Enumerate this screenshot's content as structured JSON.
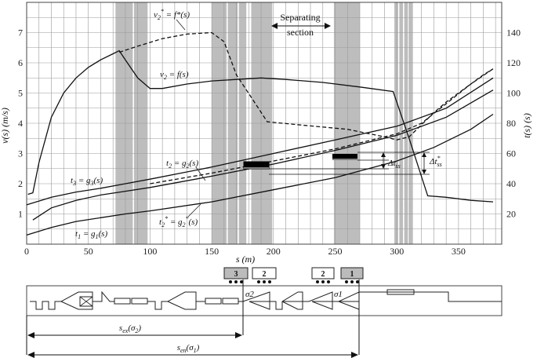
{
  "chart_data": {
    "type": "line",
    "title": "",
    "xlabel": "s (m)",
    "ylabel_left": "v(s) (m/s)",
    "ylabel_right": "t(s) (s)",
    "xlim": [
      0,
      385
    ],
    "ylim_left": [
      0,
      8
    ],
    "ylim_right": [
      0,
      160
    ],
    "x_ticks": [
      "0",
      "50",
      "100",
      "150",
      "200",
      "250",
      "300",
      "350"
    ],
    "y_left_ticks": [
      "1",
      "2",
      "3",
      "4",
      "5",
      "6",
      "7"
    ],
    "y_right_ticks": [
      "20",
      "40",
      "60",
      "80",
      "100",
      "120",
      "140"
    ],
    "grid": true,
    "separating_section_label": "Separating section",
    "separating_section_range": [
      200,
      250
    ],
    "shaded_bands": [
      [
        72,
        86
      ],
      [
        87,
        98
      ],
      [
        150,
        162
      ],
      [
        163,
        171
      ],
      [
        172,
        178
      ],
      [
        182,
        199
      ],
      [
        249,
        270
      ],
      [
        298,
        301
      ],
      [
        302,
        305
      ],
      [
        306,
        309
      ],
      [
        310,
        313
      ]
    ],
    "series": [
      {
        "name": "v2* = f*(s)",
        "axis": "left",
        "style": "dashed",
        "x": [
          75,
          90,
          110,
          130,
          150,
          160,
          170,
          183,
          195,
          220,
          260,
          290,
          300,
          310,
          320,
          330,
          340,
          350,
          360,
          370,
          378
        ],
        "y": [
          6.35,
          6.55,
          6.8,
          6.95,
          7.0,
          6.7,
          5.6,
          4.8,
          4.05,
          3.95,
          3.8,
          3.55,
          3.45,
          3.55,
          3.95,
          4.35,
          4.7,
          5.0,
          5.3,
          5.6,
          5.8
        ]
      },
      {
        "name": "v2 = f(s)",
        "axis": "left",
        "style": "solid",
        "x": [
          1,
          5,
          10,
          20,
          30,
          40,
          50,
          60,
          70,
          75,
          80,
          90,
          100,
          110,
          130,
          150,
          170,
          190,
          210,
          240,
          270,
          297,
          310,
          325,
          340,
          360,
          378
        ],
        "y": [
          1.65,
          1.7,
          2.7,
          4.2,
          5.0,
          5.5,
          5.85,
          6.1,
          6.3,
          6.4,
          6.1,
          5.5,
          5.15,
          5.15,
          5.3,
          5.4,
          5.45,
          5.5,
          5.45,
          5.35,
          5.2,
          5.05,
          3.5,
          1.6,
          1.55,
          1.45,
          1.4
        ]
      },
      {
        "name": "t3 = g3(s)",
        "axis": "right",
        "style": "solid",
        "x": [
          5,
          20,
          40,
          60,
          80,
          100,
          150,
          200,
          250,
          300,
          340,
          378
        ],
        "y": [
          16,
          24,
          29,
          32.5,
          35,
          37.5,
          45,
          53,
          62,
          72,
          84,
          102
        ]
      },
      {
        "name": "t2 = g2(s)",
        "axis": "right",
        "style": "solid",
        "x": [
          0,
          20,
          40,
          60,
          80,
          100,
          150,
          200,
          250,
          300,
          340,
          378
        ],
        "y": [
          26,
          31,
          34.5,
          37,
          40,
          43,
          51,
          60,
          69,
          78,
          90,
          110
        ]
      },
      {
        "name": "t2* = g2*(s)",
        "axis": "right",
        "style": "dashed",
        "x": [
          100,
          150,
          200,
          250,
          300,
          320,
          340,
          360,
          378
        ],
        "y": [
          40,
          47,
          55,
          63,
          73,
          80,
          93,
          106,
          116
        ]
      },
      {
        "name": "t1 = g1(s)",
        "axis": "right",
        "style": "solid",
        "x": [
          0,
          20,
          40,
          60,
          80,
          100,
          150,
          200,
          250,
          300,
          330,
          360,
          378
        ],
        "y": [
          6,
          11,
          15,
          17.5,
          20,
          22,
          28,
          36,
          44,
          55,
          64,
          76,
          86
        ]
      }
    ],
    "annotations": {
      "v2_star": "v2* = f*(s)",
      "v2": "v2 = f(s)",
      "t3": "t3 = g3(s)",
      "t2": "t2 = g2(s)",
      "t2_star": "t2* = g2*(s)",
      "t1": "t1 = g1(s)",
      "delta_tss": "Δtss",
      "delta_tss_star": "Δt*ss"
    }
  },
  "track_diagram": {
    "trains": [
      "3",
      "2",
      "2",
      "1"
    ],
    "sigma2": "σ2",
    "sigma1": "σ1",
    "s_ex_label": "sex(σ2)",
    "s_en_label": "sen(σ1)"
  }
}
